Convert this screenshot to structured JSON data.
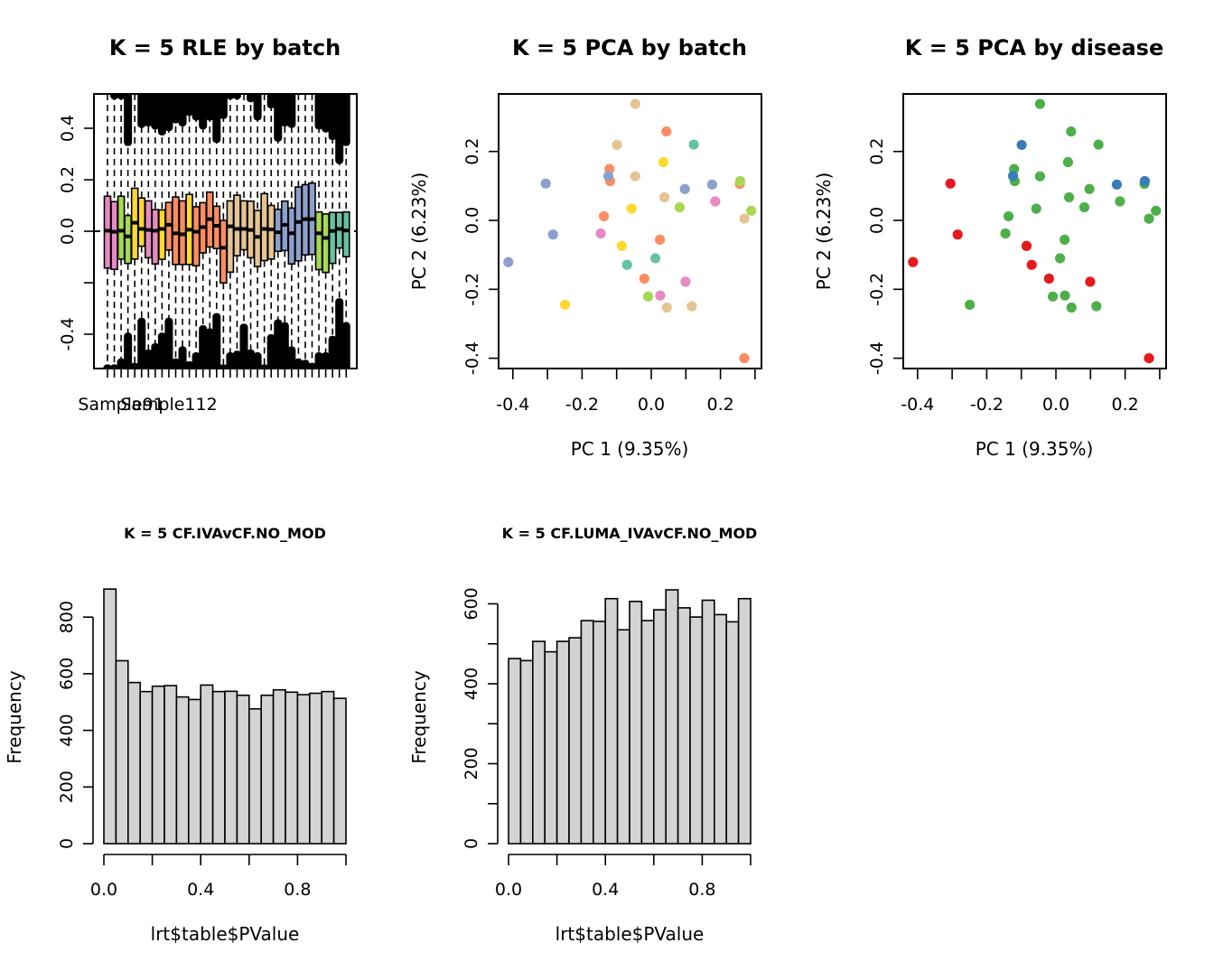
{
  "colors": {
    "batch": {
      "A": "#66C2A5",
      "B": "#FC8D62",
      "C": "#8DA0CB",
      "D": "#E78AC3",
      "E": "#A6D854",
      "F": "#FFD92F",
      "G": "#E5C494"
    },
    "disease": {
      "d1": "#E41A1C",
      "d2": "#377EB8",
      "d3": "#4DAF4A"
    },
    "hist_fill": "#D3D3D3",
    "ink": "#000000"
  },
  "chart_data": [
    {
      "type": "boxplot",
      "title": "K = 5 RLE by batch",
      "xlabel": "",
      "ylabel": "",
      "ylim": [
        -0.53,
        0.54
      ],
      "yticks": [
        -0.4,
        -0.2,
        0.0,
        0.2,
        0.4
      ],
      "ytick_labels": [
        "-0.4",
        "",
        "0.0",
        "0.2",
        "0.4"
      ],
      "xtick_labels_visible": [
        "Sample91",
        "Sample112"
      ],
      "xtick_label_positions": [
        2,
        9
      ],
      "reference_line": 0.0,
      "boxes": [
        {
          "batch": "D",
          "q1": -0.143,
          "median": 0.002,
          "q3": 0.136,
          "outlier_top_min": 0.547,
          "outlier_bottom_max": -0.517
        },
        {
          "batch": "D",
          "q1": -0.148,
          "median": -0.002,
          "q3": 0.115,
          "outlier_top_min": 0.512,
          "outlier_bottom_max": -0.517
        },
        {
          "batch": "E",
          "q1": -0.108,
          "median": 0.002,
          "q3": 0.136,
          "outlier_top_min": 0.512,
          "outlier_bottom_max": -0.494
        },
        {
          "batch": "E",
          "q1": -0.125,
          "median": -0.02,
          "q3": 0.061,
          "outlier_top_min": 0.331,
          "outlier_bottom_max": -0.394
        },
        {
          "batch": "F",
          "q1": -0.108,
          "median": 0.033,
          "q3": 0.167,
          "outlier_top_min": 0.536,
          "outlier_bottom_max": -0.511
        },
        {
          "batch": "F",
          "q1": -0.058,
          "median": 0.009,
          "q3": 0.129,
          "outlier_top_min": 0.401,
          "outlier_bottom_max": -0.336
        },
        {
          "batch": "D",
          "q1": -0.103,
          "median": 0.005,
          "q3": 0.118,
          "outlier_top_min": 0.407,
          "outlier_bottom_max": -0.459
        },
        {
          "batch": "D",
          "q1": -0.127,
          "median": 0.002,
          "q3": 0.084,
          "outlier_top_min": 0.395,
          "outlier_bottom_max": -0.435
        },
        {
          "batch": "F",
          "q1": -0.109,
          "median": 0.009,
          "q3": 0.083,
          "outlier_top_min": 0.372,
          "outlier_bottom_max": -0.394
        },
        {
          "batch": "B",
          "q1": -0.073,
          "median": 0.025,
          "q3": 0.112,
          "outlier_top_min": 0.389,
          "outlier_bottom_max": -0.336
        },
        {
          "batch": "B",
          "q1": -0.129,
          "median": -0.008,
          "q3": 0.133,
          "outlier_top_min": 0.419,
          "outlier_bottom_max": -0.494
        },
        {
          "batch": "B",
          "q1": -0.129,
          "median": -0.012,
          "q3": 0.118,
          "outlier_top_min": 0.407,
          "outlier_bottom_max": -0.447
        },
        {
          "batch": "F",
          "q1": -0.129,
          "median": 0.006,
          "q3": 0.143,
          "outlier_top_min": 0.448,
          "outlier_bottom_max": -0.505
        },
        {
          "batch": "B",
          "q1": -0.134,
          "median": -0.002,
          "q3": 0.095,
          "outlier_top_min": 0.43,
          "outlier_bottom_max": -0.47
        },
        {
          "batch": "B",
          "q1": -0.084,
          "median": 0.016,
          "q3": 0.111,
          "outlier_top_min": 0.395,
          "outlier_bottom_max": -0.365
        },
        {
          "batch": "B",
          "q1": -0.061,
          "median": 0.047,
          "q3": 0.152,
          "outlier_top_min": 0.43,
          "outlier_bottom_max": -0.377
        },
        {
          "batch": "B",
          "q1": -0.067,
          "median": 0.021,
          "q3": 0.097,
          "outlier_top_min": 0.343,
          "outlier_bottom_max": -0.318
        },
        {
          "batch": "B",
          "q1": -0.201,
          "median": -0.064,
          "q3": 0.042,
          "outlier_top_min": 0.436,
          "outlier_bottom_max": -0.517
        },
        {
          "batch": "G",
          "q1": -0.159,
          "median": 0.019,
          "q3": 0.118,
          "outlier_top_min": 0.512,
          "outlier_bottom_max": -0.47
        },
        {
          "batch": "G",
          "q1": -0.095,
          "median": 0.009,
          "q3": 0.14,
          "outlier_top_min": 0.512,
          "outlier_bottom_max": -0.464
        },
        {
          "batch": "G",
          "q1": -0.072,
          "median": 0.009,
          "q3": 0.118,
          "outlier_top_min": 0.536,
          "outlier_bottom_max": -0.359
        },
        {
          "batch": "G",
          "q1": -0.103,
          "median": 0.005,
          "q3": 0.117,
          "outlier_top_min": 0.501,
          "outlier_bottom_max": -0.459
        },
        {
          "batch": "G",
          "q1": -0.137,
          "median": -0.022,
          "q3": 0.081,
          "outlier_top_min": 0.43,
          "outlier_bottom_max": -0.47
        },
        {
          "batch": "G",
          "q1": -0.114,
          "median": 0.009,
          "q3": 0.146,
          "outlier_top_min": 0.536,
          "outlier_bottom_max": -0.517
        },
        {
          "batch": "G",
          "q1": -0.108,
          "median": 0.007,
          "q3": 0.1,
          "outlier_top_min": 0.477,
          "outlier_bottom_max": -0.4
        },
        {
          "batch": "C",
          "q1": -0.078,
          "median": -0.004,
          "q3": 0.085,
          "outlier_top_min": 0.348,
          "outlier_bottom_max": -0.342
        },
        {
          "batch": "C",
          "q1": -0.075,
          "median": 0.025,
          "q3": 0.117,
          "outlier_top_min": 0.407,
          "outlier_bottom_max": -0.353
        },
        {
          "batch": "C",
          "q1": -0.127,
          "median": -0.008,
          "q3": 0.09,
          "outlier_top_min": 0.401,
          "outlier_bottom_max": -0.447
        },
        {
          "batch": "C",
          "q1": -0.115,
          "median": 0.036,
          "q3": 0.172,
          "outlier_top_min": 0.536,
          "outlier_bottom_max": -0.494
        },
        {
          "batch": "C",
          "q1": -0.092,
          "median": 0.047,
          "q3": 0.181,
          "outlier_top_min": 0.536,
          "outlier_bottom_max": -0.499
        },
        {
          "batch": "C",
          "q1": -0.09,
          "median": 0.047,
          "q3": 0.187,
          "outlier_top_min": 0.536,
          "outlier_bottom_max": -0.511
        },
        {
          "batch": "E",
          "q1": -0.149,
          "median": -0.008,
          "q3": 0.075,
          "outlier_top_min": 0.395,
          "outlier_bottom_max": -0.47
        },
        {
          "batch": "E",
          "q1": -0.16,
          "median": -0.026,
          "q3": 0.067,
          "outlier_top_min": 0.384,
          "outlier_bottom_max": -0.47
        },
        {
          "batch": "A",
          "q1": -0.125,
          "median": 0.001,
          "q3": 0.073,
          "outlier_top_min": 0.354,
          "outlier_bottom_max": -0.406
        },
        {
          "batch": "A",
          "q1": -0.065,
          "median": 0.009,
          "q3": 0.073,
          "outlier_top_min": 0.261,
          "outlier_bottom_max": -0.26
        },
        {
          "batch": "A",
          "q1": -0.099,
          "median": 0.003,
          "q3": 0.075,
          "outlier_top_min": 0.331,
          "outlier_bottom_max": -0.353
        }
      ]
    },
    {
      "type": "scatter",
      "title": "K = 5 PCA by batch",
      "xlabel": "PC 1 (9.35%)",
      "ylabel": "PC 2 (6.23%)",
      "xlim": [
        -0.44,
        0.31
      ],
      "ylim": [
        -0.43,
        0.37
      ],
      "xticks": [
        -0.4,
        -0.3,
        -0.2,
        -0.1,
        0.0,
        0.1,
        0.2,
        0.3
      ],
      "xtick_labels": [
        "-0.4",
        "",
        "-0.2",
        "",
        "0.0",
        "",
        "0.2",
        ""
      ],
      "yticks": [
        -0.4,
        -0.2,
        0.0,
        0.2
      ],
      "ytick_labels": [
        "-0.4",
        "-0.2",
        "0.0",
        "0.2"
      ],
      "color_by": "batch",
      "points_ref": "pca_points"
    },
    {
      "type": "scatter",
      "title": "K = 5 PCA by disease",
      "xlabel": "PC 1 (9.35%)",
      "ylabel": "PC 2 (6.23%)",
      "xlim": [
        -0.44,
        0.31
      ],
      "ylim": [
        -0.43,
        0.37
      ],
      "xticks": [
        -0.4,
        -0.3,
        -0.2,
        -0.1,
        0.0,
        0.1,
        0.2,
        0.3
      ],
      "xtick_labels": [
        "-0.4",
        "",
        "-0.2",
        "",
        "0.0",
        "",
        "0.2",
        ""
      ],
      "yticks": [
        -0.4,
        -0.2,
        0.0,
        0.2
      ],
      "ytick_labels": [
        "-0.4",
        "-0.2",
        "0.0",
        "0.2"
      ],
      "color_by": "disease",
      "points_ref": "pca_points"
    },
    {
      "type": "bar",
      "subtype": "histogram",
      "title": "K = 5 CF.IVAvCF.NO_MOD",
      "xlabel": "lrt$table$PValue",
      "ylabel": "Frequency",
      "xlim": [
        0,
        1
      ],
      "ylim": [
        0,
        900
      ],
      "xticks": [
        0.0,
        0.2,
        0.4,
        0.6,
        0.8,
        1.0
      ],
      "xtick_labels": [
        "0.0",
        "",
        "0.4",
        "",
        "0.8",
        ""
      ],
      "yticks": [
        0,
        200,
        400,
        600,
        800
      ],
      "ytick_labels": [
        "0",
        "200",
        "400",
        "600",
        "800"
      ],
      "bin_width": 0.05,
      "values": [
        899,
        646,
        569,
        537,
        556,
        558,
        518,
        509,
        560,
        537,
        538,
        524,
        476,
        524,
        543,
        535,
        526,
        531,
        537,
        513
      ]
    },
    {
      "type": "bar",
      "subtype": "histogram",
      "title": "K = 5 CF.LUMA_IVAvCF.NO_MOD",
      "xlabel": "lrt$table$PValue",
      "ylabel": "Frequency",
      "xlim": [
        0,
        1
      ],
      "ylim": [
        0,
        640
      ],
      "xticks": [
        0.0,
        0.2,
        0.4,
        0.6,
        0.8,
        1.0
      ],
      "xtick_labels": [
        "0.0",
        "",
        "0.4",
        "",
        "0.8",
        ""
      ],
      "yticks": [
        0,
        100,
        200,
        300,
        400,
        500,
        600
      ],
      "ytick_labels": [
        "0",
        "",
        "200",
        "",
        "400",
        "",
        "600"
      ],
      "bin_width": 0.05,
      "values": [
        463,
        458,
        506,
        480,
        506,
        515,
        558,
        556,
        613,
        535,
        606,
        558,
        585,
        635,
        590,
        567,
        609,
        573,
        555,
        613
      ]
    }
  ],
  "pca_points": [
    {
      "pc1": -0.046,
      "pc2": 0.338,
      "batch": "G",
      "disease": "d3"
    },
    {
      "pc1": 0.044,
      "pc2": 0.258,
      "batch": "B",
      "disease": "d3"
    },
    {
      "pc1": 0.123,
      "pc2": 0.22,
      "batch": "A",
      "disease": "d3"
    },
    {
      "pc1": -0.099,
      "pc2": 0.219,
      "batch": "G",
      "disease": "d2"
    },
    {
      "pc1": 0.035,
      "pc2": 0.169,
      "batch": "F",
      "disease": "d3"
    },
    {
      "pc1": -0.121,
      "pc2": 0.149,
      "batch": "B",
      "disease": "d3"
    },
    {
      "pc1": -0.119,
      "pc2": 0.114,
      "batch": "B",
      "disease": "d3"
    },
    {
      "pc1": -0.124,
      "pc2": 0.129,
      "batch": "C",
      "disease": "d2"
    },
    {
      "pc1": -0.046,
      "pc2": 0.128,
      "batch": "G",
      "disease": "d3"
    },
    {
      "pc1": -0.305,
      "pc2": 0.107,
      "batch": "C",
      "disease": "d1"
    },
    {
      "pc1": 0.097,
      "pc2": 0.091,
      "batch": "C",
      "disease": "d3"
    },
    {
      "pc1": 0.176,
      "pc2": 0.104,
      "batch": "C",
      "disease": "d2"
    },
    {
      "pc1": 0.256,
      "pc2": 0.106,
      "batch": "B",
      "disease": "d3"
    },
    {
      "pc1": 0.257,
      "pc2": 0.114,
      "batch": "E",
      "disease": "d2"
    },
    {
      "pc1": 0.038,
      "pc2": 0.067,
      "batch": "G",
      "disease": "d3"
    },
    {
      "pc1": 0.185,
      "pc2": 0.055,
      "batch": "D",
      "disease": "d3"
    },
    {
      "pc1": 0.082,
      "pc2": 0.038,
      "batch": "E",
      "disease": "d3"
    },
    {
      "pc1": 0.289,
      "pc2": 0.028,
      "batch": "E",
      "disease": "d3"
    },
    {
      "pc1": 0.269,
      "pc2": 0.005,
      "batch": "G",
      "disease": "d3"
    },
    {
      "pc1": -0.057,
      "pc2": 0.034,
      "batch": "F",
      "disease": "d3"
    },
    {
      "pc1": -0.137,
      "pc2": 0.012,
      "batch": "B",
      "disease": "d3"
    },
    {
      "pc1": -0.284,
      "pc2": -0.041,
      "batch": "C",
      "disease": "d1"
    },
    {
      "pc1": -0.146,
      "pc2": -0.038,
      "batch": "D",
      "disease": "d3"
    },
    {
      "pc1": -0.085,
      "pc2": -0.074,
      "batch": "F",
      "disease": "d1"
    },
    {
      "pc1": 0.025,
      "pc2": -0.056,
      "batch": "B",
      "disease": "d3"
    },
    {
      "pc1": -0.413,
      "pc2": -0.121,
      "batch": "C",
      "disease": "d1"
    },
    {
      "pc1": 0.012,
      "pc2": -0.11,
      "batch": "A",
      "disease": "d3"
    },
    {
      "pc1": -0.07,
      "pc2": -0.129,
      "batch": "A",
      "disease": "d1"
    },
    {
      "pc1": -0.02,
      "pc2": -0.169,
      "batch": "B",
      "disease": "d1"
    },
    {
      "pc1": 0.099,
      "pc2": -0.178,
      "batch": "D",
      "disease": "d1"
    },
    {
      "pc1": -0.009,
      "pc2": -0.221,
      "batch": "E",
      "disease": "d3"
    },
    {
      "pc1": 0.026,
      "pc2": -0.218,
      "batch": "D",
      "disease": "d3"
    },
    {
      "pc1": -0.249,
      "pc2": -0.245,
      "batch": "F",
      "disease": "d3"
    },
    {
      "pc1": 0.045,
      "pc2": -0.253,
      "batch": "G",
      "disease": "d3"
    },
    {
      "pc1": 0.117,
      "pc2": -0.249,
      "batch": "G",
      "disease": "d3"
    },
    {
      "pc1": 0.269,
      "pc2": -0.4,
      "batch": "B",
      "disease": "d1"
    }
  ]
}
